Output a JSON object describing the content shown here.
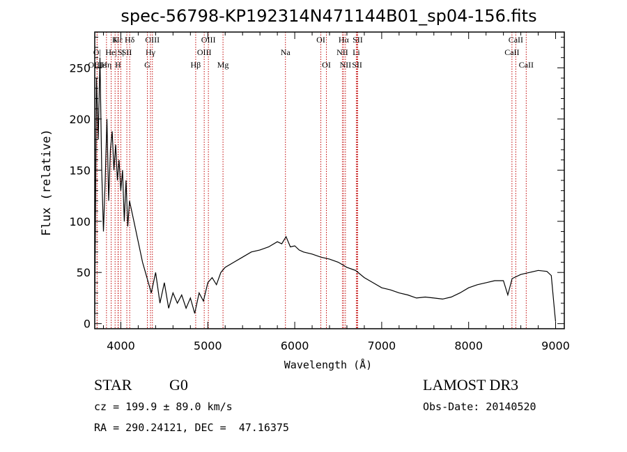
{
  "chart_data": {
    "type": "line",
    "title": "spec-56798-KP192314N471144B01_sp04-156.fits",
    "xlabel": "Wavelength (Å)",
    "ylabel": "Flux (relative)",
    "xlim": [
      3700,
      9100
    ],
    "ylim": [
      -5,
      285
    ],
    "xticks": [
      4000,
      5000,
      6000,
      7000,
      8000,
      9000
    ],
    "yticks": [
      0,
      50,
      100,
      150,
      200,
      250
    ],
    "xtick_labels": [
      "4000",
      "5000",
      "6000",
      "7000",
      "8000",
      "9000"
    ],
    "ytick_labels": [
      "0",
      "50",
      "100",
      "150",
      "200",
      "250"
    ],
    "series": [
      {
        "name": "flux",
        "x": [
          3700,
          3720,
          3740,
          3760,
          3780,
          3800,
          3820,
          3840,
          3860,
          3880,
          3900,
          3920,
          3940,
          3960,
          3980,
          4000,
          4020,
          4040,
          4060,
          4080,
          4100,
          4150,
          4200,
          4250,
          4300,
          4350,
          4400,
          4450,
          4500,
          4550,
          4600,
          4650,
          4700,
          4750,
          4800,
          4850,
          4900,
          4950,
          5000,
          5050,
          5100,
          5150,
          5200,
          5300,
          5400,
          5500,
          5600,
          5700,
          5800,
          5850,
          5900,
          5950,
          6000,
          6050,
          6100,
          6200,
          6300,
          6400,
          6500,
          6600,
          6700,
          6800,
          6900,
          7000,
          7100,
          7200,
          7300,
          7400,
          7500,
          7600,
          7700,
          7800,
          7900,
          8000,
          8100,
          8200,
          8300,
          8400,
          8450,
          8500,
          8600,
          8700,
          8800,
          8900,
          8950,
          8990,
          9000
        ],
        "y": [
          10,
          240,
          180,
          260,
          150,
          90,
          140,
          200,
          120,
          170,
          188,
          150,
          175,
          140,
          160,
          130,
          150,
          100,
          140,
          95,
          120,
          100,
          80,
          60,
          45,
          30,
          50,
          20,
          40,
          15,
          30,
          20,
          28,
          15,
          25,
          10,
          30,
          22,
          40,
          45,
          38,
          50,
          55,
          60,
          65,
          70,
          72,
          75,
          80,
          78,
          85,
          75,
          76,
          72,
          70,
          68,
          65,
          63,
          60,
          55,
          52,
          45,
          40,
          35,
          33,
          30,
          28,
          25,
          26,
          25,
          24,
          26,
          30,
          35,
          38,
          40,
          42,
          42,
          28,
          44,
          48,
          50,
          52,
          51,
          47,
          10,
          2
        ]
      }
    ],
    "lines": [
      {
        "name": "Hε",
        "wave": 3970,
        "row": 1
      },
      {
        "name": "O|",
        "wave": 3727,
        "row": 2
      },
      {
        "name": "OIIIε",
        "wave": 3727,
        "row": 3
      },
      {
        "name": "Hη",
        "wave": 3835,
        "row": 3
      },
      {
        "name": "He|",
        "wave": 3889,
        "row": 2
      },
      {
        "name": "K",
        "wave": 3934,
        "row": 1
      },
      {
        "name": "S|",
        "wave": 4000,
        "row": 2
      },
      {
        "name": "H",
        "wave": 3968,
        "row": 3
      },
      {
        "name": "Hδ",
        "wave": 4102,
        "row": 1
      },
      {
        "name": "SII",
        "wave": 4069,
        "row": 2
      },
      {
        "name": "OIII",
        "wave": 4363,
        "row": 1
      },
      {
        "name": "Hγ",
        "wave": 4341,
        "row": 2
      },
      {
        "name": "G",
        "wave": 4305,
        "row": 3
      },
      {
        "name": "Hβ",
        "wave": 4861,
        "row": 3
      },
      {
        "name": "OIII",
        "wave": 5007,
        "row": 1
      },
      {
        "name": "OIII",
        "wave": 4959,
        "row": 2
      },
      {
        "name": "Mg",
        "wave": 5175,
        "row": 3
      },
      {
        "name": "Na",
        "wave": 5893,
        "row": 2
      },
      {
        "name": "OI",
        "wave": 6300,
        "row": 1
      },
      {
        "name": "OI",
        "wave": 6364,
        "row": 3
      },
      {
        "name": "Hα",
        "wave": 6563,
        "row": 1
      },
      {
        "name": "SII",
        "wave": 6724,
        "row": 1
      },
      {
        "name": "NII",
        "wave": 6548,
        "row": 2
      },
      {
        "name": "Li",
        "wave": 6708,
        "row": 2
      },
      {
        "name": "NII",
        "wave": 6583,
        "row": 3
      },
      {
        "name": "SII",
        "wave": 6717,
        "row": 3
      },
      {
        "name": "CaII",
        "wave": 8542,
        "row": 1
      },
      {
        "name": "CaII",
        "wave": 8498,
        "row": 2
      },
      {
        "name": "CaII",
        "wave": 8662,
        "row": 3
      }
    ]
  },
  "info": {
    "object_class": "STAR",
    "subclass": "G0",
    "survey": "LAMOST DR3",
    "cz": "cz = 199.9 ± 89.0 km/s",
    "obs_date": "Obs-Date: 20140520",
    "coords": "RA = 290.24121, DEC =  47.16375"
  }
}
